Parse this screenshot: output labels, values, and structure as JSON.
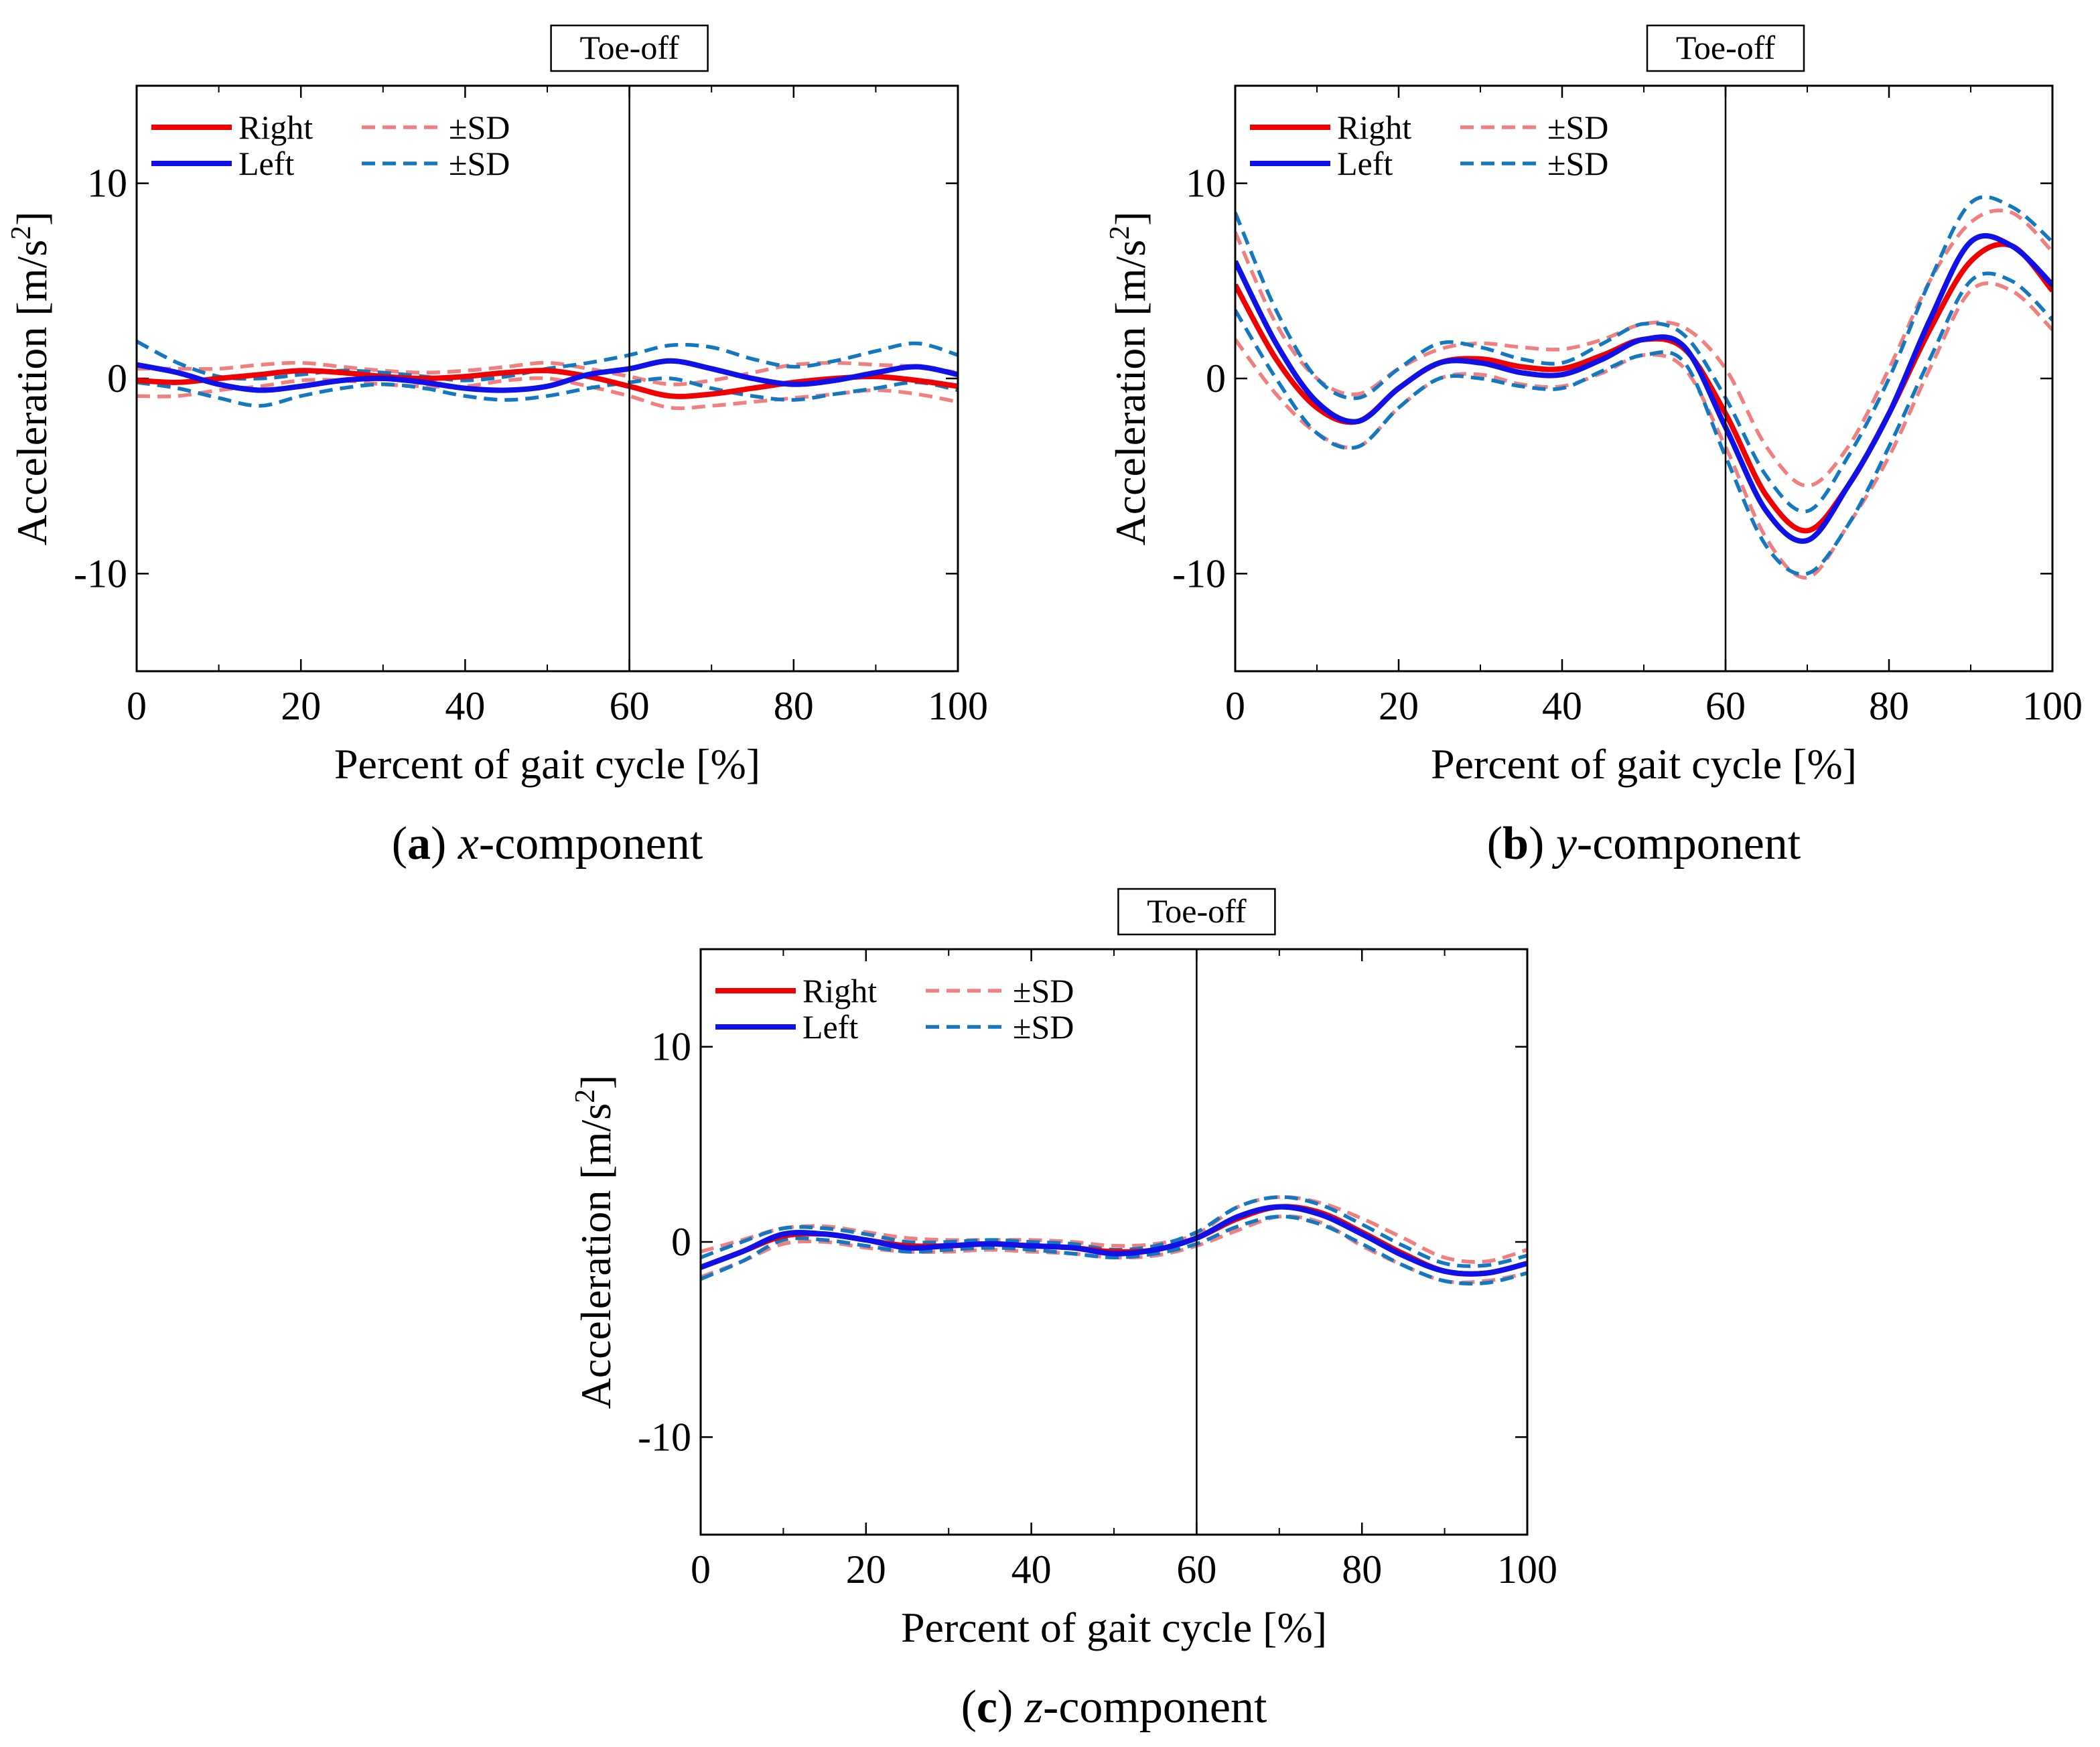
{
  "colors": {
    "right": "#f00000",
    "left": "#1010e8",
    "right_sd": "#f08080",
    "left_sd": "#1478c0",
    "axis": "#000000"
  },
  "chart_data": [
    {
      "id": "a",
      "type": "line",
      "caption": {
        "letter": "a",
        "var": "x",
        "rest": "-component"
      },
      "title": "",
      "xlabel": "Percent of gait cycle [%]",
      "ylabel": "Acceleration [m/s",
      "ylabel_sup": "2",
      "ylabel_end": "]",
      "xlim": [
        0,
        100
      ],
      "ylim": [
        -15,
        15
      ],
      "xticks": [
        0,
        20,
        40,
        60,
        80,
        100
      ],
      "yticks": [
        -10,
        0,
        10
      ],
      "ytick_labels": [
        "-10",
        "0",
        "10"
      ],
      "toe_off": {
        "x": 60,
        "label": "Toe-off"
      },
      "legend": {
        "right": "Right",
        "left": "Left",
        "right_sd": "±SD",
        "left_sd": "±SD",
        "placement": "top-left"
      },
      "x": [
        0,
        5,
        10,
        15,
        20,
        25,
        30,
        35,
        40,
        45,
        50,
        55,
        60,
        65,
        70,
        75,
        80,
        85,
        90,
        95,
        100
      ],
      "series": [
        {
          "name": "Right",
          "style": "right",
          "values": [
            -0.1,
            -0.2,
            0.0,
            0.2,
            0.4,
            0.3,
            0.1,
            0.0,
            0.1,
            0.3,
            0.4,
            0.1,
            -0.4,
            -0.9,
            -0.8,
            -0.5,
            -0.2,
            0.0,
            0.1,
            -0.1,
            -0.4
          ]
        },
        {
          "name": "Right +SD",
          "style": "right_sd",
          "values": [
            0.5,
            0.5,
            0.5,
            0.7,
            0.8,
            0.6,
            0.4,
            0.3,
            0.4,
            0.6,
            0.8,
            0.5,
            0.1,
            -0.3,
            -0.1,
            0.3,
            0.7,
            0.8,
            0.7,
            0.6,
            0.3
          ]
        },
        {
          "name": "Right -SD",
          "style": "right_sd",
          "values": [
            -0.9,
            -0.9,
            -0.6,
            -0.4,
            -0.1,
            -0.1,
            -0.3,
            -0.4,
            -0.4,
            -0.1,
            0.0,
            -0.4,
            -0.9,
            -1.5,
            -1.4,
            -1.2,
            -1.0,
            -0.8,
            -0.6,
            -0.8,
            -1.2
          ]
        },
        {
          "name": "Left",
          "style": "left",
          "values": [
            0.7,
            0.3,
            -0.3,
            -0.6,
            -0.4,
            -0.1,
            0.0,
            -0.2,
            -0.5,
            -0.6,
            -0.4,
            0.2,
            0.5,
            0.9,
            0.5,
            0.0,
            -0.3,
            -0.1,
            0.3,
            0.6,
            0.2
          ]
        },
        {
          "name": "Left +SD",
          "style": "left_sd",
          "values": [
            1.9,
            0.8,
            0.1,
            0.0,
            0.2,
            0.4,
            0.3,
            0.1,
            -0.1,
            0.1,
            0.5,
            0.8,
            1.2,
            1.7,
            1.6,
            1.0,
            0.6,
            0.9,
            1.4,
            1.8,
            1.2
          ]
        },
        {
          "name": "Left -SD",
          "style": "left_sd",
          "values": [
            -0.2,
            -0.5,
            -1.0,
            -1.4,
            -0.9,
            -0.5,
            -0.3,
            -0.5,
            -0.9,
            -1.1,
            -0.9,
            -0.5,
            -0.2,
            0.0,
            -0.5,
            -0.9,
            -1.1,
            -0.8,
            -0.5,
            -0.2,
            -0.6
          ]
        }
      ]
    },
    {
      "id": "b",
      "type": "line",
      "caption": {
        "letter": "b",
        "var": "y",
        "rest": "-component"
      },
      "title": "",
      "xlabel": "Percent of gait cycle [%]",
      "ylabel": "Acceleration [m/s",
      "ylabel_sup": "2",
      "ylabel_end": "]",
      "xlim": [
        0,
        100
      ],
      "ylim": [
        -15,
        15
      ],
      "xticks": [
        0,
        20,
        40,
        60,
        80,
        100
      ],
      "yticks": [
        -10,
        0,
        10
      ],
      "ytick_labels": [
        "-10",
        "0",
        "10"
      ],
      "toe_off": {
        "x": 60,
        "label": "Toe-off"
      },
      "legend": {
        "right": "Right",
        "left": "Left",
        "right_sd": "±SD",
        "left_sd": "±SD",
        "placement": "top-left"
      },
      "x": [
        0,
        5,
        10,
        15,
        20,
        25,
        30,
        35,
        40,
        45,
        50,
        55,
        60,
        65,
        70,
        75,
        80,
        85,
        90,
        95,
        100
      ],
      "series": [
        {
          "name": "Right",
          "style": "right",
          "values": [
            4.8,
            1.0,
            -1.5,
            -2.2,
            -0.5,
            0.8,
            1.0,
            0.6,
            0.5,
            1.2,
            2.0,
            1.5,
            -1.8,
            -6.0,
            -7.8,
            -5.5,
            -1.8,
            2.5,
            6.0,
            6.8,
            4.5
          ]
        },
        {
          "name": "Right +SD",
          "style": "right_sd",
          "values": [
            7.5,
            2.8,
            0.0,
            -0.8,
            0.5,
            1.5,
            1.8,
            1.6,
            1.5,
            2.0,
            2.8,
            2.6,
            0.5,
            -3.5,
            -5.5,
            -3.5,
            0.5,
            5.0,
            8.0,
            8.5,
            6.5
          ]
        },
        {
          "name": "Right -SD",
          "style": "right_sd",
          "values": [
            2.0,
            -0.8,
            -2.8,
            -3.5,
            -1.5,
            0.0,
            0.2,
            -0.3,
            -0.4,
            0.3,
            1.2,
            0.5,
            -3.5,
            -8.2,
            -10.2,
            -7.5,
            -4.0,
            0.5,
            4.5,
            4.5,
            2.5
          ]
        },
        {
          "name": "Left",
          "style": "left",
          "values": [
            6.0,
            1.8,
            -1.2,
            -2.2,
            -0.5,
            0.8,
            0.8,
            0.3,
            0.2,
            1.0,
            2.0,
            1.6,
            -2.5,
            -6.8,
            -8.3,
            -5.5,
            -1.8,
            3.0,
            7.0,
            6.8,
            4.8
          ]
        },
        {
          "name": "Left +SD",
          "style": "left_sd",
          "values": [
            8.5,
            3.5,
            0.0,
            -1.0,
            0.5,
            1.8,
            1.6,
            1.0,
            0.8,
            1.8,
            2.8,
            2.2,
            -1.0,
            -5.0,
            -6.8,
            -4.0,
            0.0,
            5.0,
            9.0,
            8.8,
            7.0
          ]
        },
        {
          "name": "Left -SD",
          "style": "left_sd",
          "values": [
            3.5,
            0.0,
            -2.8,
            -3.5,
            -1.5,
            0.0,
            0.0,
            -0.4,
            -0.5,
            0.4,
            1.2,
            0.8,
            -4.0,
            -8.6,
            -10.0,
            -7.5,
            -3.5,
            1.0,
            5.0,
            5.0,
            3.0
          ]
        }
      ]
    },
    {
      "id": "c",
      "type": "line",
      "caption": {
        "letter": "c",
        "var": "z",
        "rest": "-component"
      },
      "title": "",
      "xlabel": "Percent of gait cycle [%]",
      "ylabel": "Acceleration [m/s",
      "ylabel_sup": "2",
      "ylabel_end": "]",
      "xlim": [
        0,
        100
      ],
      "ylim": [
        -15,
        15
      ],
      "xticks": [
        0,
        20,
        40,
        60,
        80,
        100
      ],
      "yticks": [
        -10,
        0,
        10
      ],
      "ytick_labels": [
        "-10",
        "0",
        "10"
      ],
      "toe_off": {
        "x": 60,
        "label": "Toe-off"
      },
      "legend": {
        "right": "Right",
        "left": "Left",
        "right_sd": "±SD",
        "left_sd": "±SD",
        "placement": "top-left"
      },
      "x": [
        0,
        5,
        10,
        15,
        20,
        25,
        30,
        35,
        40,
        45,
        50,
        55,
        60,
        65,
        70,
        75,
        80,
        85,
        90,
        95,
        100
      ],
      "series": [
        {
          "name": "Right",
          "style": "right",
          "values": [
            -1.3,
            -0.5,
            0.3,
            0.4,
            0.1,
            -0.2,
            -0.2,
            -0.1,
            -0.2,
            -0.3,
            -0.5,
            -0.4,
            0.2,
            1.2,
            1.8,
            1.5,
            0.5,
            -0.6,
            -1.5,
            -1.6,
            -1.1
          ]
        },
        {
          "name": "Right +SD",
          "style": "right_sd",
          "values": [
            -0.5,
            0.1,
            0.7,
            0.8,
            0.5,
            0.2,
            0.1,
            0.1,
            0.1,
            0.0,
            -0.2,
            -0.1,
            0.4,
            1.8,
            2.3,
            2.0,
            1.2,
            0.2,
            -0.8,
            -1.0,
            -0.4
          ]
        },
        {
          "name": "Right -SD",
          "style": "right_sd",
          "values": [
            -1.8,
            -1.0,
            -0.1,
            0.0,
            -0.3,
            -0.5,
            -0.5,
            -0.4,
            -0.5,
            -0.6,
            -0.8,
            -0.7,
            -0.2,
            0.6,
            1.3,
            1.0,
            -0.2,
            -1.2,
            -2.0,
            -2.0,
            -1.6
          ]
        },
        {
          "name": "Left",
          "style": "left",
          "values": [
            -1.3,
            -0.5,
            0.4,
            0.4,
            0.1,
            -0.3,
            -0.2,
            -0.1,
            -0.2,
            -0.3,
            -0.6,
            -0.4,
            0.2,
            1.3,
            1.8,
            1.4,
            0.4,
            -0.7,
            -1.5,
            -1.6,
            -1.1
          ]
        },
        {
          "name": "Left +SD",
          "style": "left_sd",
          "values": [
            -0.8,
            0.0,
            0.7,
            0.7,
            0.4,
            0.0,
            0.0,
            0.1,
            0.0,
            -0.1,
            -0.4,
            -0.2,
            0.5,
            1.8,
            2.3,
            1.9,
            0.9,
            -0.2,
            -1.1,
            -1.2,
            -0.7
          ]
        },
        {
          "name": "Left -SD",
          "style": "left_sd",
          "values": [
            -1.9,
            -1.0,
            0.1,
            0.1,
            -0.2,
            -0.5,
            -0.4,
            -0.3,
            -0.4,
            -0.6,
            -0.8,
            -0.6,
            -0.1,
            0.8,
            1.3,
            0.9,
            -0.1,
            -1.2,
            -2.0,
            -2.1,
            -1.6
          ]
        }
      ]
    }
  ]
}
